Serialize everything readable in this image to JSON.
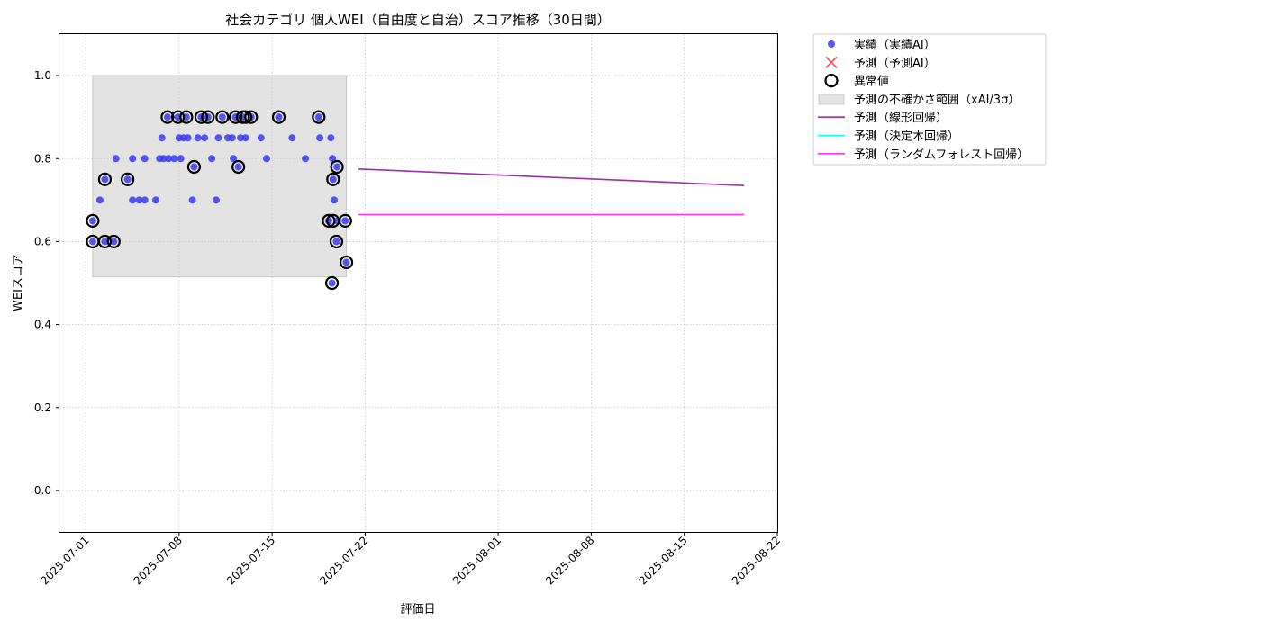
{
  "chart_data": {
    "type": "scatter",
    "title": "社会カテゴリ 個人WEI（自由度と自治）スコア推移（30日間）",
    "xlabel": "評価日",
    "ylabel": "WEIスコア",
    "xlim": [
      "2025-06-29T00:00",
      "2025-08-22T00:00"
    ],
    "ylim": [
      -0.1,
      1.1
    ],
    "x_ticks": [
      "2025-07-01",
      "2025-07-08",
      "2025-07-15",
      "2025-07-22",
      "2025-08-01",
      "2025-08-08",
      "2025-08-15",
      "2025-08-22"
    ],
    "y_ticks": [
      0.0,
      0.2,
      0.4,
      0.6,
      0.8,
      1.0
    ],
    "y_tick_labels": [
      "0.0",
      "0.2",
      "0.4",
      "0.6",
      "0.8",
      "1.0"
    ],
    "grid": true,
    "legend_position": "outside-top-right",
    "legend": [
      {
        "label": "実績（実績AI）",
        "kind": "dot",
        "color": "#3b3bef"
      },
      {
        "label": "予測（予測AI）",
        "kind": "cross",
        "color": "#ff4d4d"
      },
      {
        "label": "異常値",
        "kind": "ring",
        "color": "#000000"
      },
      {
        "label": "予測の不確かさ範囲（xAI/3σ）",
        "kind": "patch",
        "color": "#e3e3e3"
      },
      {
        "label": "予測（線形回帰）",
        "kind": "line",
        "color": "#9b30a8"
      },
      {
        "label": "予測（決定木回帰）",
        "kind": "line",
        "color": "#00ffff"
      },
      {
        "label": "予測（ランダムフォレスト回帰）",
        "kind": "line",
        "color": "#ff33ff"
      }
    ],
    "uncertainty_band": {
      "x": [
        "2025-07-01T12:00",
        "2025-07-20T14:00"
      ],
      "y": [
        0.515,
        1.0
      ]
    },
    "series": [
      {
        "name": "実績（実績AI）",
        "color": "#3b3bef",
        "points": [
          [
            "2025-07-01T12:00",
            0.65
          ],
          [
            "2025-07-01T12:00",
            0.6
          ],
          [
            "2025-07-02T01:00",
            0.7
          ],
          [
            "2025-07-02T10:00",
            0.75
          ],
          [
            "2025-07-02T10:00",
            0.6
          ],
          [
            "2025-07-03T02:00",
            0.6
          ],
          [
            "2025-07-03T06:00",
            0.8
          ],
          [
            "2025-07-04T03:00",
            0.75
          ],
          [
            "2025-07-04T12:00",
            0.7
          ],
          [
            "2025-07-04T12:00",
            0.8
          ],
          [
            "2025-07-05T00:00",
            0.7
          ],
          [
            "2025-07-05T10:00",
            0.7
          ],
          [
            "2025-07-05T10:00",
            0.8
          ],
          [
            "2025-07-06T06:00",
            0.7
          ],
          [
            "2025-07-06T13:00",
            0.8
          ],
          [
            "2025-07-06T17:00",
            0.85
          ],
          [
            "2025-07-06T20:00",
            0.8
          ],
          [
            "2025-07-07T03:00",
            0.9
          ],
          [
            "2025-07-07T05:00",
            0.8
          ],
          [
            "2025-07-07T15:00",
            0.8
          ],
          [
            "2025-07-07T22:00",
            0.9
          ],
          [
            "2025-07-08T00:00",
            0.85
          ],
          [
            "2025-07-08T03:00",
            0.8
          ],
          [
            "2025-07-08T08:00",
            0.85
          ],
          [
            "2025-07-08T13:00",
            0.9
          ],
          [
            "2025-07-08T16:00",
            0.85
          ],
          [
            "2025-07-09T00:00",
            0.7
          ],
          [
            "2025-07-09T03:00",
            0.78
          ],
          [
            "2025-07-09T10:00",
            0.85
          ],
          [
            "2025-07-09T16:00",
            0.9
          ],
          [
            "2025-07-09T22:00",
            0.85
          ],
          [
            "2025-07-10T04:00",
            0.9
          ],
          [
            "2025-07-10T11:00",
            0.8
          ],
          [
            "2025-07-10T19:00",
            0.7
          ],
          [
            "2025-07-10T23:00",
            0.85
          ],
          [
            "2025-07-11T06:00",
            0.9
          ],
          [
            "2025-07-11T16:00",
            0.85
          ],
          [
            "2025-07-12T00:00",
            0.85
          ],
          [
            "2025-07-12T02:00",
            0.8
          ],
          [
            "2025-07-12T06:00",
            0.9
          ],
          [
            "2025-07-12T11:00",
            0.78
          ],
          [
            "2025-07-12T15:00",
            0.85
          ],
          [
            "2025-07-12T19:00",
            0.9
          ],
          [
            "2025-07-13T00:00",
            0.85
          ],
          [
            "2025-07-13T10:00",
            0.9
          ],
          [
            "2025-07-14T04:00",
            0.85
          ],
          [
            "2025-07-14T14:00",
            0.8
          ],
          [
            "2025-07-15T12:00",
            0.9
          ],
          [
            "2025-07-16T12:00",
            0.85
          ],
          [
            "2025-07-17T12:00",
            0.8
          ],
          [
            "2025-07-18T12:00",
            0.9
          ],
          [
            "2025-07-18T14:00",
            0.85
          ],
          [
            "2025-07-19T06:00",
            0.65
          ],
          [
            "2025-07-19T10:00",
            0.85
          ],
          [
            "2025-07-19T12:00",
            0.5
          ],
          [
            "2025-07-19T13:00",
            0.8
          ],
          [
            "2025-07-19T14:00",
            0.75
          ],
          [
            "2025-07-19T16:00",
            0.7
          ],
          [
            "2025-07-19T20:00",
            0.6
          ],
          [
            "2025-07-19T21:00",
            0.78
          ],
          [
            "2025-07-19T22:00",
            0.65
          ],
          [
            "2025-07-20T12:00",
            0.65
          ],
          [
            "2025-07-20T14:00",
            0.55
          ]
        ]
      },
      {
        "name": "異常値",
        "color": "#000000",
        "points": [
          [
            "2025-07-01T12:00",
            0.65
          ],
          [
            "2025-07-01T12:00",
            0.6
          ],
          [
            "2025-07-02T10:00",
            0.75
          ],
          [
            "2025-07-02T10:00",
            0.6
          ],
          [
            "2025-07-03T02:00",
            0.6
          ],
          [
            "2025-07-04T03:00",
            0.75
          ],
          [
            "2025-07-07T03:00",
            0.9
          ],
          [
            "2025-07-07T22:00",
            0.9
          ],
          [
            "2025-07-08T13:00",
            0.9
          ],
          [
            "2025-07-09T03:00",
            0.78
          ],
          [
            "2025-07-09T16:00",
            0.9
          ],
          [
            "2025-07-10T04:00",
            0.9
          ],
          [
            "2025-07-11T06:00",
            0.9
          ],
          [
            "2025-07-12T06:00",
            0.9
          ],
          [
            "2025-07-12T11:00",
            0.78
          ],
          [
            "2025-07-12T19:00",
            0.9
          ],
          [
            "2025-07-13T00:00",
            0.9
          ],
          [
            "2025-07-13T10:00",
            0.9
          ],
          [
            "2025-07-15T12:00",
            0.9
          ],
          [
            "2025-07-18T12:00",
            0.9
          ],
          [
            "2025-07-19T06:00",
            0.65
          ],
          [
            "2025-07-19T12:00",
            0.5
          ],
          [
            "2025-07-19T14:00",
            0.75
          ],
          [
            "2025-07-19T14:00",
            0.65
          ],
          [
            "2025-07-19T20:00",
            0.6
          ],
          [
            "2025-07-19T21:00",
            0.78
          ],
          [
            "2025-07-20T12:00",
            0.65
          ],
          [
            "2025-07-20T14:00",
            0.55
          ]
        ]
      },
      {
        "name": "予測（線形回帰）",
        "color": "#9b30a8",
        "points": [
          [
            "2025-07-21T12:00",
            0.775
          ],
          [
            "2025-08-19T12:00",
            0.735
          ]
        ]
      },
      {
        "name": "予測（決定木回帰）",
        "color": "#00ffff",
        "points": [
          [
            "2025-07-21T12:00",
            0.665
          ],
          [
            "2025-08-19T12:00",
            0.665
          ]
        ]
      },
      {
        "name": "予測（ランダムフォレスト回帰）",
        "color": "#ff33ff",
        "points": [
          [
            "2025-07-21T12:00",
            0.665
          ],
          [
            "2025-08-19T12:00",
            0.665
          ]
        ]
      }
    ]
  }
}
